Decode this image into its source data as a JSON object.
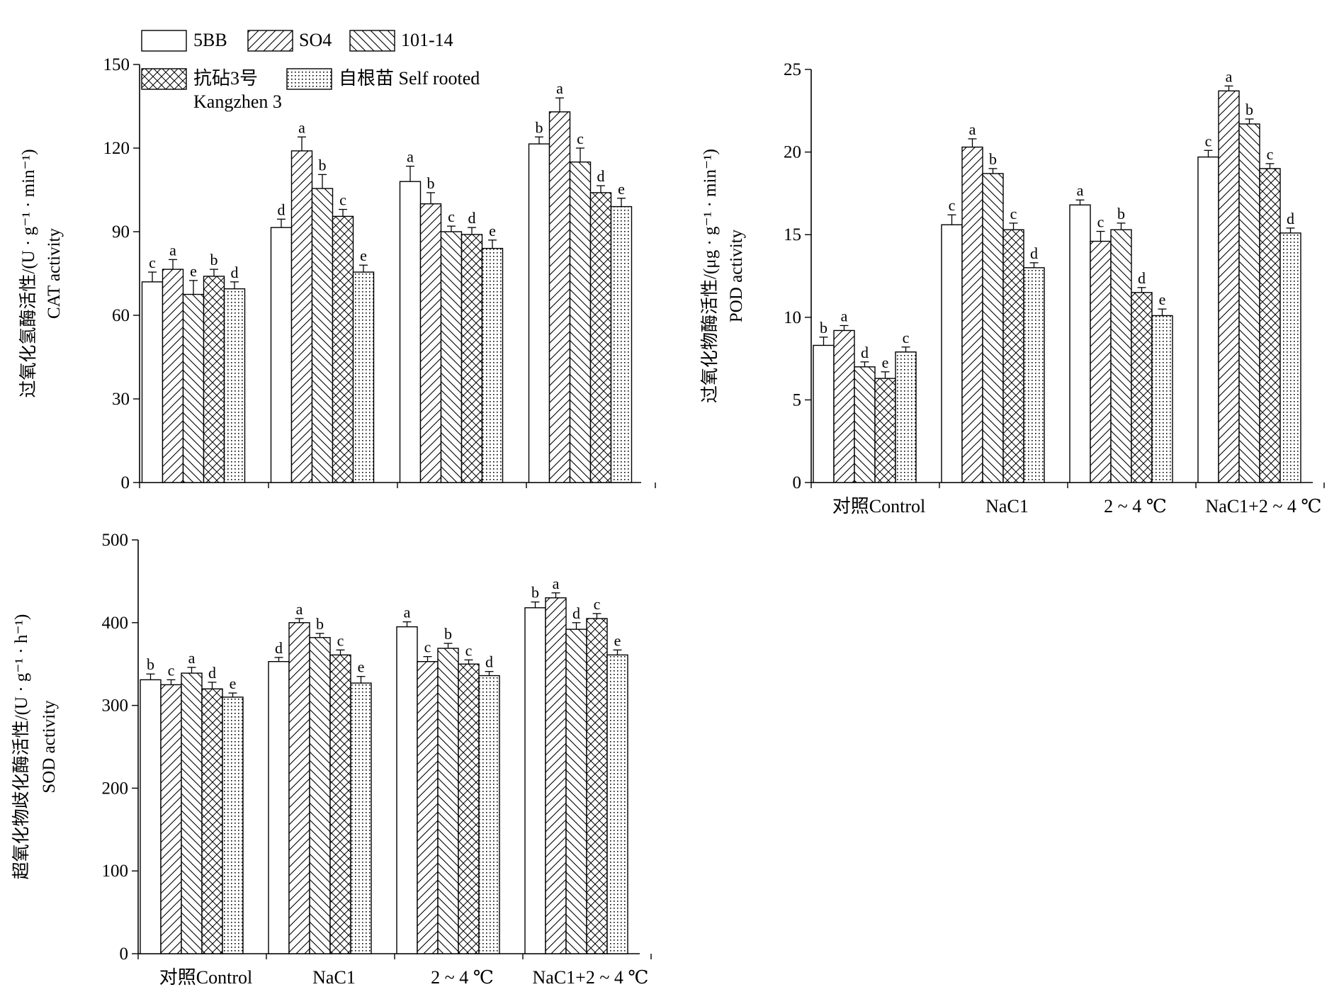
{
  "legend": {
    "items": [
      {
        "label": "5BB",
        "pattern": "white"
      },
      {
        "label": "SO4",
        "pattern": "diag-right"
      },
      {
        "label": "101-14",
        "pattern": "diag-left"
      },
      {
        "label": "抗砧3号",
        "label2": "Kangzhen 3",
        "pattern": "crosshatch"
      },
      {
        "label": "自根苗 Self rooted",
        "pattern": "dots"
      }
    ]
  },
  "chart_data": [
    {
      "type": "bar",
      "ylabel": "过氧化氢酶活性/(U · g⁻¹ · min⁻¹)",
      "ylabel2": "CAT activity",
      "ylim": [
        0,
        150
      ],
      "yticks": [
        0,
        30,
        60,
        90,
        120,
        150
      ],
      "categories": [
        "对照Control",
        "NaC1",
        "2 ~ 4 ℃",
        "NaC1+2 ~ 4 ℃"
      ],
      "show_categories": false,
      "series": [
        {
          "name": "5BB",
          "values": [
            72,
            91.5,
            108,
            121.5
          ],
          "errors": [
            3.5,
            3,
            5.5,
            2.5
          ],
          "letters": [
            "c",
            "d",
            "a",
            "b"
          ]
        },
        {
          "name": "SO4",
          "values": [
            76.5,
            119,
            100,
            133
          ],
          "errors": [
            3.5,
            5,
            4,
            5
          ],
          "letters": [
            "a",
            "a",
            "b",
            "a"
          ]
        },
        {
          "name": "101-14",
          "values": [
            67.5,
            105.5,
            90,
            115
          ],
          "errors": [
            5,
            5,
            2,
            5
          ],
          "letters": [
            "e",
            "b",
            "c",
            "c"
          ]
        },
        {
          "name": "抗砧3号 Kangzhen 3",
          "values": [
            74,
            95.5,
            89,
            104
          ],
          "errors": [
            2.5,
            2.5,
            2.5,
            2.5
          ],
          "letters": [
            "b",
            "c",
            "d",
            "d"
          ]
        },
        {
          "name": "自根苗 Self rooted",
          "values": [
            69.5,
            75.5,
            84,
            99
          ],
          "errors": [
            2.5,
            2.5,
            3,
            3
          ],
          "letters": [
            "d",
            "e",
            "e",
            "e"
          ]
        }
      ]
    },
    {
      "type": "bar",
      "ylabel": "过氧化物酶活性/(μg · g⁻¹ · min⁻¹)",
      "ylabel2": "POD activity",
      "ylim": [
        0,
        25
      ],
      "yticks": [
        0,
        5,
        10,
        15,
        20,
        25
      ],
      "categories": [
        "对照Control",
        "NaC1",
        "2 ~ 4 ℃",
        "NaC1+2 ~ 4 ℃"
      ],
      "show_categories": true,
      "series": [
        {
          "name": "5BB",
          "values": [
            8.3,
            15.6,
            16.8,
            19.7
          ],
          "errors": [
            0.5,
            0.6,
            0.3,
            0.4
          ],
          "letters": [
            "b",
            "c",
            "a",
            "c"
          ]
        },
        {
          "name": "SO4",
          "values": [
            9.2,
            20.3,
            14.6,
            23.7
          ],
          "errors": [
            0.3,
            0.5,
            0.6,
            0.3
          ],
          "letters": [
            "a",
            "a",
            "c",
            "a"
          ]
        },
        {
          "name": "101-14",
          "values": [
            7.0,
            18.7,
            15.3,
            21.7
          ],
          "errors": [
            0.3,
            0.3,
            0.4,
            0.3
          ],
          "letters": [
            "d",
            "b",
            "b",
            "b"
          ]
        },
        {
          "name": "抗砧3号 Kangzhen 3",
          "values": [
            6.3,
            15.3,
            11.5,
            19.0
          ],
          "errors": [
            0.4,
            0.4,
            0.3,
            0.3
          ],
          "letters": [
            "e",
            "c",
            "d",
            "c"
          ]
        },
        {
          "name": "自根苗 Self rooted",
          "values": [
            7.9,
            13.0,
            10.1,
            15.1
          ],
          "errors": [
            0.3,
            0.3,
            0.4,
            0.3
          ],
          "letters": [
            "c",
            "d",
            "e",
            "d"
          ]
        }
      ]
    },
    {
      "type": "bar",
      "ylabel": "超氧化物歧化酶活性/(U · g⁻¹ · h⁻¹)",
      "ylabel2": "SOD activity",
      "ylim": [
        0,
        500
      ],
      "yticks": [
        0,
        100,
        200,
        300,
        400,
        500
      ],
      "categories": [
        "对照Control",
        "NaC1",
        "2 ~ 4 ℃",
        "NaC1+2 ~ 4 ℃"
      ],
      "show_categories": true,
      "series": [
        {
          "name": "5BB",
          "values": [
            331,
            353,
            395,
            418
          ],
          "errors": [
            7,
            5,
            6,
            7
          ],
          "letters": [
            "b",
            "d",
            "a",
            "b"
          ]
        },
        {
          "name": "SO4",
          "values": [
            325,
            400,
            353,
            430
          ],
          "errors": [
            6,
            5,
            6,
            6
          ],
          "letters": [
            "c",
            "a",
            "c",
            "a"
          ]
        },
        {
          "name": "101-14",
          "values": [
            339,
            382,
            369,
            392
          ],
          "errors": [
            7,
            5,
            6,
            8
          ],
          "letters": [
            "a",
            "b",
            "b",
            "d"
          ]
        },
        {
          "name": "抗砧3号 Kangzhen 3",
          "values": [
            320,
            361,
            350,
            405
          ],
          "errors": [
            8,
            6,
            5,
            6
          ],
          "letters": [
            "d",
            "c",
            "c",
            "c"
          ]
        },
        {
          "name": "自根苗 Self rooted",
          "values": [
            310,
            327,
            336,
            361
          ],
          "errors": [
            5,
            8,
            5,
            6
          ],
          "letters": [
            "e",
            "e",
            "d",
            "e"
          ]
        }
      ]
    }
  ]
}
